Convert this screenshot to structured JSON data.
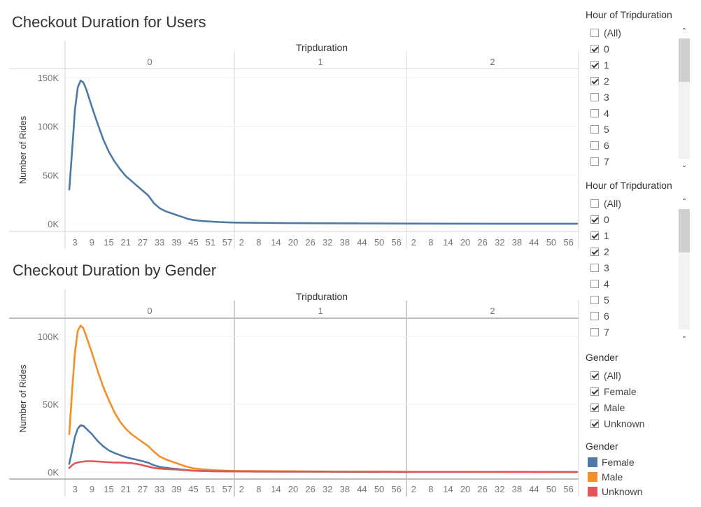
{
  "charts_titles": {
    "top": "Checkout Duration for Users",
    "bottom": "Checkout Duration by Gender"
  },
  "chart_data": [
    {
      "type": "line",
      "title": "Checkout Duration for Users",
      "column_header": "Tripduration",
      "panels": [
        "0",
        "1",
        "2"
      ],
      "ylabel": "Number of Rides",
      "ylim": [
        0,
        150000
      ],
      "y_ticks": [
        "0K",
        "50K",
        "100K",
        "150K"
      ],
      "x_ticks": [
        [
          "3",
          "9",
          "15",
          "21",
          "27",
          "33",
          "39",
          "45",
          "51",
          "57"
        ],
        [
          "2",
          "8",
          "14",
          "20",
          "26",
          "32",
          "38",
          "44",
          "50",
          "56"
        ],
        [
          "2",
          "8",
          "14",
          "20",
          "26",
          "32",
          "38",
          "44",
          "50",
          "56"
        ]
      ],
      "series": [
        {
          "color": "#4e79a7",
          "points": [
            [
              0,
              1,
              35000
            ],
            [
              0,
              2,
              75000
            ],
            [
              0,
              3,
              117000
            ],
            [
              0,
              4,
              140000
            ],
            [
              0,
              5,
              147000
            ],
            [
              0,
              6,
              145000
            ],
            [
              0,
              7,
              138000
            ],
            [
              0,
              9,
              120000
            ],
            [
              0,
              11,
              103000
            ],
            [
              0,
              13,
              87000
            ],
            [
              0,
              15,
              74000
            ],
            [
              0,
              17,
              64000
            ],
            [
              0,
              19,
              56000
            ],
            [
              0,
              21,
              49000
            ],
            [
              0,
              23,
              44000
            ],
            [
              0,
              25,
              39000
            ],
            [
              0,
              27,
              34000
            ],
            [
              0,
              29,
              29000
            ],
            [
              0,
              31,
              21000
            ],
            [
              0,
              33,
              16000
            ],
            [
              0,
              35,
              13000
            ],
            [
              0,
              37,
              11000
            ],
            [
              0,
              39,
              9000
            ],
            [
              0,
              41,
              7000
            ],
            [
              0,
              43,
              5000
            ],
            [
              0,
              45,
              3800
            ],
            [
              0,
              48,
              2900
            ],
            [
              0,
              51,
              2300
            ],
            [
              0,
              54,
              1800
            ],
            [
              0,
              57,
              1500
            ],
            [
              0,
              59,
              1300
            ],
            [
              1,
              0,
              1200
            ],
            [
              1,
              15,
              800
            ],
            [
              1,
              30,
              500
            ],
            [
              1,
              45,
              350
            ],
            [
              1,
              59,
              200
            ],
            [
              2,
              0,
              200
            ],
            [
              2,
              30,
              100
            ],
            [
              2,
              59,
              80
            ]
          ]
        }
      ]
    },
    {
      "type": "line",
      "title": "Checkout Duration by Gender",
      "column_header": "Tripduration",
      "panels": [
        "0",
        "1",
        "2"
      ],
      "ylabel": "Number of Rides",
      "ylim": [
        0,
        110000
      ],
      "y_ticks": [
        "0K",
        "50K",
        "100K"
      ],
      "x_ticks": [
        [
          "3",
          "9",
          "15",
          "21",
          "27",
          "33",
          "39",
          "45",
          "51",
          "57"
        ],
        [
          "2",
          "8",
          "14",
          "20",
          "26",
          "32",
          "38",
          "44",
          "50",
          "56"
        ],
        [
          "2",
          "8",
          "14",
          "20",
          "26",
          "32",
          "38",
          "44",
          "50",
          "56"
        ]
      ],
      "series": [
        {
          "name": "Male",
          "color": "#f28e2b",
          "points": [
            [
              0,
              1,
              28000
            ],
            [
              0,
              2,
              60000
            ],
            [
              0,
              3,
              88000
            ],
            [
              0,
              4,
              104000
            ],
            [
              0,
              5,
              108000
            ],
            [
              0,
              6,
              106000
            ],
            [
              0,
              7,
              100000
            ],
            [
              0,
              9,
              88000
            ],
            [
              0,
              11,
              75000
            ],
            [
              0,
              13,
              63000
            ],
            [
              0,
              15,
              53000
            ],
            [
              0,
              17,
              44000
            ],
            [
              0,
              19,
              37000
            ],
            [
              0,
              21,
              32000
            ],
            [
              0,
              23,
              28000
            ],
            [
              0,
              25,
              25000
            ],
            [
              0,
              27,
              22000
            ],
            [
              0,
              29,
              19000
            ],
            [
              0,
              31,
              15000
            ],
            [
              0,
              33,
              11500
            ],
            [
              0,
              35,
              9500
            ],
            [
              0,
              37,
              8000
            ],
            [
              0,
              39,
              6500
            ],
            [
              0,
              41,
              5000
            ],
            [
              0,
              43,
              3800
            ],
            [
              0,
              45,
              2700
            ],
            [
              0,
              48,
              2000
            ],
            [
              0,
              51,
              1500
            ],
            [
              0,
              54,
              1200
            ],
            [
              0,
              57,
              1000
            ],
            [
              0,
              59,
              900
            ],
            [
              1,
              0,
              800
            ],
            [
              1,
              30,
              400
            ],
            [
              1,
              59,
              200
            ],
            [
              2,
              0,
              150
            ],
            [
              2,
              59,
              60
            ]
          ]
        },
        {
          "name": "Female",
          "color": "#4e79a7",
          "points": [
            [
              0,
              1,
              6000
            ],
            [
              0,
              2,
              16000
            ],
            [
              0,
              3,
              26000
            ],
            [
              0,
              4,
              32000
            ],
            [
              0,
              5,
              34500
            ],
            [
              0,
              6,
              34000
            ],
            [
              0,
              7,
              32000
            ],
            [
              0,
              9,
              28000
            ],
            [
              0,
              11,
              23000
            ],
            [
              0,
              13,
              19000
            ],
            [
              0,
              15,
              16000
            ],
            [
              0,
              17,
              14000
            ],
            [
              0,
              19,
              12500
            ],
            [
              0,
              21,
              11000
            ],
            [
              0,
              23,
              10000
            ],
            [
              0,
              25,
              9000
            ],
            [
              0,
              27,
              8000
            ],
            [
              0,
              29,
              6800
            ],
            [
              0,
              31,
              5000
            ],
            [
              0,
              33,
              3800
            ],
            [
              0,
              35,
              3200
            ],
            [
              0,
              37,
              2700
            ],
            [
              0,
              39,
              2300
            ],
            [
              0,
              41,
              1800
            ],
            [
              0,
              43,
              1400
            ],
            [
              0,
              45,
              1000
            ],
            [
              0,
              48,
              800
            ],
            [
              0,
              51,
              600
            ],
            [
              0,
              57,
              450
            ],
            [
              1,
              0,
              400
            ],
            [
              1,
              59,
              120
            ],
            [
              2,
              0,
              100
            ],
            [
              2,
              59,
              40
            ]
          ]
        },
        {
          "name": "Unknown",
          "color": "#e15759",
          "points": [
            [
              0,
              1,
              3000
            ],
            [
              0,
              2,
              5000
            ],
            [
              0,
              3,
              6500
            ],
            [
              0,
              5,
              7500
            ],
            [
              0,
              7,
              8000
            ],
            [
              0,
              9,
              8000
            ],
            [
              0,
              11,
              7800
            ],
            [
              0,
              13,
              7500
            ],
            [
              0,
              15,
              7200
            ],
            [
              0,
              17,
              7000
            ],
            [
              0,
              19,
              7000
            ],
            [
              0,
              21,
              6800
            ],
            [
              0,
              23,
              6500
            ],
            [
              0,
              25,
              6000
            ],
            [
              0,
              27,
              5000
            ],
            [
              0,
              29,
              4000
            ],
            [
              0,
              31,
              3000
            ],
            [
              0,
              33,
              2500
            ],
            [
              0,
              35,
              2200
            ],
            [
              0,
              37,
              2000
            ],
            [
              0,
              39,
              1800
            ],
            [
              0,
              41,
              1600
            ],
            [
              0,
              43,
              1300
            ],
            [
              0,
              45,
              1000
            ],
            [
              0,
              48,
              800
            ],
            [
              0,
              51,
              600
            ],
            [
              0,
              57,
              450
            ],
            [
              1,
              0,
              400
            ],
            [
              1,
              59,
              120
            ],
            [
              2,
              0,
              100
            ],
            [
              2,
              59,
              40
            ]
          ]
        }
      ]
    }
  ],
  "filters": [
    {
      "title": "Hour of Tripduration",
      "items": [
        {
          "label": "(All)",
          "checked": false
        },
        {
          "label": "0",
          "checked": true
        },
        {
          "label": "1",
          "checked": true
        },
        {
          "label": "2",
          "checked": true
        },
        {
          "label": "3",
          "checked": false
        },
        {
          "label": "4",
          "checked": false
        },
        {
          "label": "5",
          "checked": false
        },
        {
          "label": "6",
          "checked": false
        },
        {
          "label": "7",
          "checked": false
        }
      ],
      "scroll": {
        "up": "⌃",
        "down": "⌄"
      }
    },
    {
      "title": "Hour of Tripduration",
      "items": [
        {
          "label": "(All)",
          "checked": false
        },
        {
          "label": "0",
          "checked": true
        },
        {
          "label": "1",
          "checked": true
        },
        {
          "label": "2",
          "checked": true
        },
        {
          "label": "3",
          "checked": false
        },
        {
          "label": "4",
          "checked": false
        },
        {
          "label": "5",
          "checked": false
        },
        {
          "label": "6",
          "checked": false
        },
        {
          "label": "7",
          "checked": false
        }
      ],
      "scroll": {
        "up": "⌃",
        "down": "⌄"
      }
    },
    {
      "title": "Gender",
      "items": [
        {
          "label": "(All)",
          "checked": true
        },
        {
          "label": "Female",
          "checked": true
        },
        {
          "label": "Male",
          "checked": true
        },
        {
          "label": "Unknown",
          "checked": true
        }
      ]
    }
  ],
  "legend": {
    "title": "Gender",
    "items": [
      {
        "label": "Female",
        "color": "#4e79a7"
      },
      {
        "label": "Male",
        "color": "#f28e2b"
      },
      {
        "label": "Unknown",
        "color": "#e15759"
      }
    ]
  }
}
